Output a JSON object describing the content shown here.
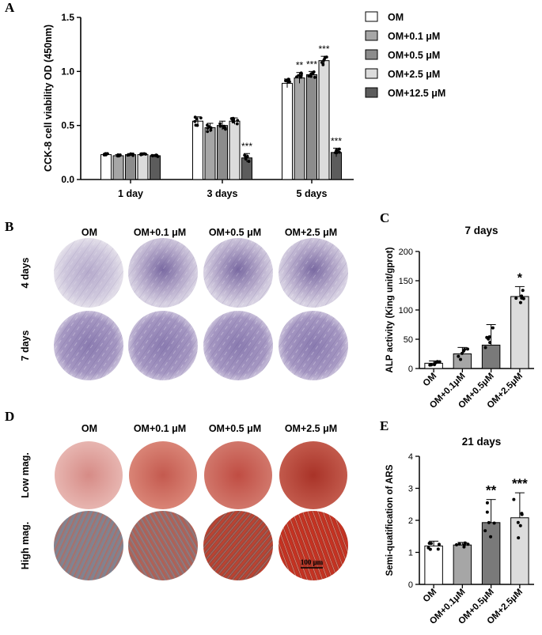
{
  "panels": {
    "a": "A",
    "b": "B",
    "c": "C",
    "d": "D",
    "e": "E"
  },
  "colors": {
    "OM": "#ffffff",
    "OM+0.1 μM": "#a6a6a6",
    "OM+0.5 μM": "#8c8c8c",
    "OM+2.5 μM": "#dcdcdc",
    "OM+12.5 μM": "#5c5c5c",
    "purple_light": "#c9c1d8",
    "purple_dark": "#6f5c98",
    "red_light": "#d99a94",
    "red_dark": "#b0312b"
  },
  "chart_data": [
    {
      "id": "A",
      "type": "bar",
      "title": "",
      "ylabel": "CCK-8 cell viability OD (450nm)",
      "xlabel": "",
      "ylim": [
        0,
        1.5
      ],
      "yticks": [
        "0.0",
        "0.5",
        "1.0",
        "1.5"
      ],
      "categories": [
        "1 day",
        "3 days",
        "5 days"
      ],
      "legend_position": "top-right",
      "series": [
        {
          "name": "OM",
          "values": [
            0.23,
            0.54,
            0.89
          ],
          "errors": [
            0.01,
            0.04,
            0.04
          ],
          "sig": [
            "",
            "",
            ""
          ]
        },
        {
          "name": "OM+0.1 μM",
          "values": [
            0.22,
            0.48,
            0.94
          ],
          "errors": [
            0.01,
            0.04,
            0.05
          ],
          "sig": [
            "",
            "",
            "**"
          ]
        },
        {
          "name": "OM+0.5 μM",
          "values": [
            0.23,
            0.5,
            0.97
          ],
          "errors": [
            0.01,
            0.04,
            0.03
          ],
          "sig": [
            "",
            "",
            "***"
          ]
        },
        {
          "name": "OM+2.5 μM",
          "values": [
            0.23,
            0.54,
            1.1
          ],
          "errors": [
            0.01,
            0.03,
            0.04
          ],
          "sig": [
            "",
            "",
            "***"
          ]
        },
        {
          "name": "OM+12.5 μM",
          "values": [
            0.22,
            0.2,
            0.25
          ],
          "errors": [
            0.01,
            0.04,
            0.04
          ],
          "sig": [
            "",
            "***",
            "***"
          ]
        }
      ]
    },
    {
      "id": "C",
      "type": "bar",
      "title": "7 days",
      "ylabel": "ALP activity (King unit/gprot)",
      "xlabel": "",
      "ylim": [
        0,
        200
      ],
      "yticks": [
        "0",
        "50",
        "100",
        "150",
        "200"
      ],
      "categories": [
        "OM",
        "OM+0.1μM",
        "OM+0.5μM",
        "OM+2.5μM"
      ],
      "values": [
        9,
        25,
        40,
        123
      ],
      "errors": [
        4,
        11,
        35,
        17
      ],
      "sig": [
        "",
        "",
        "",
        "*"
      ]
    },
    {
      "id": "E",
      "type": "bar",
      "title": "21 days",
      "ylabel": "Semi-quatification of ARS",
      "xlabel": "",
      "ylim": [
        0,
        4
      ],
      "yticks": [
        "0",
        "1",
        "2",
        "3",
        "4"
      ],
      "categories": [
        "OM",
        "OM+0.1μM",
        "OM+0.5μM",
        "OM+2.5μM"
      ],
      "values": [
        1.2,
        1.23,
        1.93,
        2.08
      ],
      "errors": [
        0.15,
        0.08,
        0.72,
        0.78
      ],
      "sig": [
        "",
        "",
        "**",
        "***"
      ]
    }
  ],
  "panel_b": {
    "columns": [
      "OM",
      "OM+0.1 μM",
      "OM+0.5 μM",
      "OM+2.5 μM"
    ],
    "rows": [
      "4 days",
      "7 days"
    ]
  },
  "panel_d": {
    "columns": [
      "OM",
      "OM+0.1 μM",
      "OM+0.5 μM",
      "OM+2.5 μM"
    ],
    "rows": [
      "Low mag.",
      "High mag."
    ],
    "scale_bar": "100 μm"
  }
}
